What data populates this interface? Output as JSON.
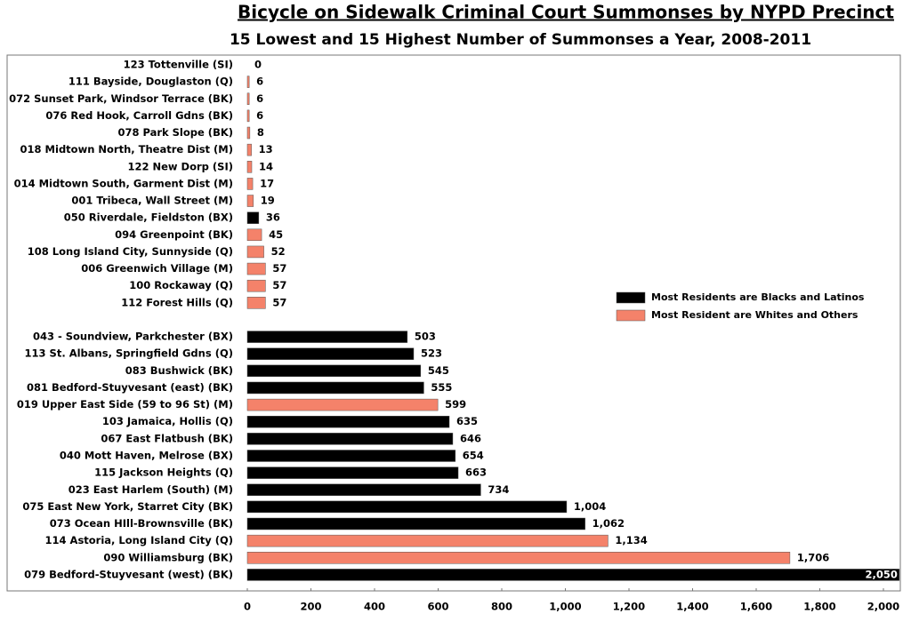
{
  "chart_data": {
    "type": "hbar",
    "title": "Bicycle on Sidewalk Criminal Court Summonses by NYPD Precinct",
    "subtitle": "15 Lowest and 15 Highest Number of Summonses a Year, 2008-2011",
    "categories": [
      "123  Tottenville (SI)",
      "111  Bayside, Douglaston (Q)",
      "072  Sunset Park, Windsor Terrace (BK)",
      "076  Red Hook, Carroll Gdns (BK)",
      "078  Park Slope (BK)",
      "018  Midtown North, Theatre Dist (M)",
      "122  New Dorp (SI)",
      "014  Midtown South, Garment Dist (M)",
      "001  Tribeca, Wall Street (M)",
      "050  Riverdale, Fieldston (BX)",
      "094  Greenpoint (BK)",
      "108  Long Island City, Sunnyside (Q)",
      "006  Greenwich Village (M)",
      "100  Rockaway (Q)",
      "112  Forest Hills (Q)",
      null,
      "043 - Soundview, Parkchester (BX)",
      "113  St. Albans, Springfield Gdns (Q)",
      "083  Bushwick (BK)",
      "081  Bedford-Stuyvesant (east) (BK)",
      "019  Upper East Side (59 to 96 St) (M)",
      "103  Jamaica, Hollis  (Q)",
      "067  East Flatbush (BK)",
      "040  Mott Haven, Melrose (BX)",
      "115  Jackson Heights (Q)",
      "023  East Harlem (South) (M)",
      "075  East New York, Starret City (BK)",
      "073  Ocean HIll-Brownsville (BK)",
      "114  Astoria, Long Island City (Q)",
      "090  Williamsburg (BK)",
      "079  Bedford-Stuyvesant (west) (BK)"
    ],
    "series": [
      {
        "name": "Most Residents are Blacks and Latinos",
        "color": "#000000",
        "values": [
          null,
          null,
          null,
          null,
          null,
          null,
          null,
          null,
          null,
          36,
          null,
          null,
          null,
          null,
          null,
          null,
          503,
          523,
          545,
          555,
          null,
          635,
          646,
          654,
          663,
          734,
          1004,
          1062,
          null,
          null,
          2050
        ],
        "value_labels": [
          null,
          null,
          null,
          null,
          null,
          null,
          null,
          null,
          null,
          "36",
          null,
          null,
          null,
          null,
          null,
          null,
          "503",
          "523",
          "545",
          "555",
          null,
          "635",
          "646",
          "654",
          "663",
          "734",
          "1,004",
          "1,062",
          null,
          null,
          "2,050"
        ]
      },
      {
        "name": "Most Resident are Whites and Others",
        "color": "#f4826a",
        "values": [
          0,
          6,
          6,
          6,
          8,
          13,
          14,
          17,
          19,
          null,
          45,
          52,
          57,
          57,
          57,
          null,
          null,
          null,
          null,
          null,
          599,
          null,
          null,
          null,
          null,
          null,
          null,
          null,
          1134,
          1706,
          null
        ],
        "value_labels": [
          "0",
          "6",
          "6",
          "6",
          "8",
          "13",
          "14",
          "17",
          "19",
          null,
          "45",
          "52",
          "57",
          "57",
          "57",
          null,
          null,
          null,
          null,
          null,
          "599",
          null,
          null,
          null,
          null,
          null,
          null,
          null,
          "1,134",
          "1,706",
          null
        ]
      }
    ],
    "xlim": [
      0,
      2000
    ],
    "xticks": [
      0,
      200,
      400,
      600,
      800,
      {
        "value": 1000,
        "label": "1,000"
      },
      {
        "value": 1200,
        "label": "1,200"
      },
      {
        "value": 1400,
        "label": "1,400"
      },
      {
        "value": 1600,
        "label": "1,600"
      },
      {
        "value": 1800,
        "label": "1,800"
      },
      {
        "value": 2000,
        "label": "2,000"
      }
    ],
    "legend": "right"
  }
}
